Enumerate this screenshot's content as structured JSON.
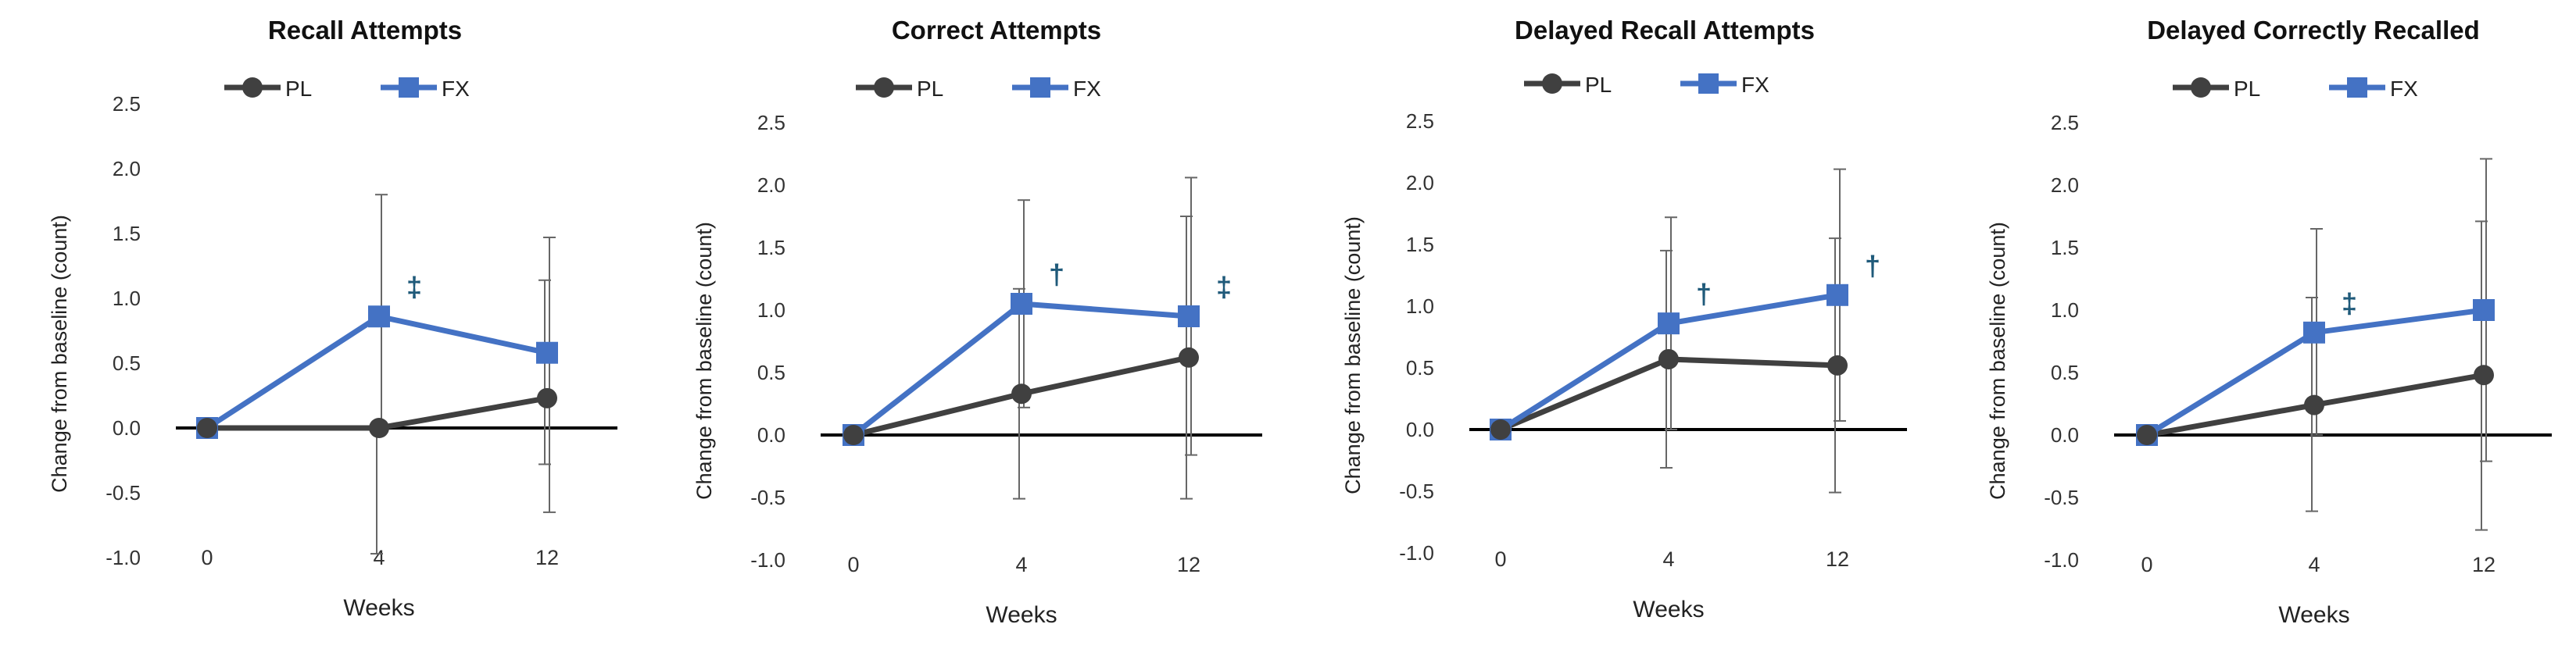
{
  "chart_data": [
    {
      "type": "line",
      "title": "Recall Attempts",
      "xlabel": "Weeks",
      "ylabel": "Change from baseline (count)",
      "categories": [
        "0",
        "4",
        "12"
      ],
      "ylim": [
        -1.0,
        2.5
      ],
      "yticks": [
        "2.5",
        "2.0",
        "1.5",
        "1.0",
        "0.5",
        "0.0",
        "-0.5",
        "-1.0"
      ],
      "legend_position": "top",
      "grid": false,
      "series": [
        {
          "name": "PL",
          "values": [
            0.0,
            0.0,
            0.23
          ],
          "err_low": [
            0,
            -0.97,
            -0.28
          ],
          "err_high": [
            0,
            0.0,
            1.14
          ],
          "marker": "circle",
          "color": "#404040"
        },
        {
          "name": "FX",
          "values": [
            0.0,
            0.86,
            0.58
          ],
          "err_low": [
            0,
            0.0,
            -0.65
          ],
          "err_high": [
            0,
            1.8,
            1.47
          ],
          "marker": "square",
          "color": "#4472C4"
        }
      ],
      "annotations": [
        {
          "text": "‡",
          "x": "4",
          "y": 0.86,
          "color": "#1F5A7A"
        }
      ]
    },
    {
      "type": "line",
      "title": "Correct Attempts",
      "xlabel": "Weeks",
      "ylabel": "Change from baseline (count)",
      "categories": [
        "0",
        "4",
        "12"
      ],
      "ylim": [
        -1.0,
        2.5
      ],
      "yticks": [
        "2.5",
        "2.0",
        "1.5",
        "1.0",
        "0.5",
        "0.0",
        "-0.5",
        "-1.0"
      ],
      "legend_position": "top",
      "grid": false,
      "series": [
        {
          "name": "PL",
          "values": [
            0.0,
            0.33,
            0.62
          ],
          "err_low": [
            0,
            -0.51,
            -0.51
          ],
          "err_high": [
            0,
            1.17,
            1.75
          ],
          "marker": "circle",
          "color": "#404040"
        },
        {
          "name": "FX",
          "values": [
            0.0,
            1.05,
            0.95
          ],
          "err_low": [
            0,
            0.22,
            -0.16
          ],
          "err_high": [
            0,
            1.88,
            2.06
          ],
          "marker": "square",
          "color": "#4472C4"
        }
      ],
      "annotations": [
        {
          "text": "†",
          "x": "4",
          "y": 1.05,
          "color": "#1F5A7A"
        },
        {
          "text": "‡",
          "x": "12",
          "y": 0.95,
          "color": "#1F5A7A"
        }
      ]
    },
    {
      "type": "line",
      "title": "Delayed Recall Attempts",
      "xlabel": "Weeks",
      "ylabel": "Change from baseline (count)",
      "categories": [
        "0",
        "4",
        "12"
      ],
      "ylim": [
        -1.0,
        2.5
      ],
      "yticks": [
        "2.5",
        "2.0",
        "1.5",
        "1.0",
        "0.5",
        "0.0",
        "-0.5",
        "-1.0"
      ],
      "legend_position": "top",
      "grid": false,
      "series": [
        {
          "name": "PL",
          "values": [
            0.0,
            0.57,
            0.52
          ],
          "err_low": [
            0,
            -0.31,
            -0.51
          ],
          "err_high": [
            0,
            1.45,
            1.55
          ],
          "marker": "circle",
          "color": "#404040"
        },
        {
          "name": "FX",
          "values": [
            0.0,
            0.86,
            1.09
          ],
          "err_low": [
            0,
            0.0,
            0.07
          ],
          "err_high": [
            0,
            1.72,
            2.11
          ],
          "marker": "square",
          "color": "#4472C4"
        }
      ],
      "annotations": [
        {
          "text": "†",
          "x": "4",
          "y": 0.86,
          "color": "#1F5A7A"
        },
        {
          "text": "†",
          "x": "12",
          "y": 1.09,
          "color": "#1F5A7A"
        }
      ]
    },
    {
      "type": "line",
      "title": "Delayed Correctly Recalled",
      "xlabel": "Weeks",
      "ylabel": "Change from baseline (count)",
      "categories": [
        "0",
        "4",
        "12"
      ],
      "ylim": [
        -1.0,
        2.5
      ],
      "yticks": [
        "2.5",
        "2.0",
        "1.5",
        "1.0",
        "0.5",
        "0.0",
        "-0.5",
        "-1.0"
      ],
      "legend_position": "top",
      "grid": false,
      "series": [
        {
          "name": "PL",
          "values": [
            0.0,
            0.24,
            0.48
          ],
          "err_low": [
            0,
            -0.61,
            -0.76
          ],
          "err_high": [
            0,
            1.1,
            1.71
          ],
          "marker": "circle",
          "color": "#404040"
        },
        {
          "name": "FX",
          "values": [
            0.0,
            0.82,
            1.0
          ],
          "err_low": [
            0,
            0.0,
            -0.21
          ],
          "err_high": [
            0,
            1.65,
            2.21
          ],
          "marker": "square",
          "color": "#4472C4"
        }
      ],
      "annotations": [
        {
          "text": "‡",
          "x": "4",
          "y": 0.82,
          "color": "#1F5A7A"
        }
      ]
    }
  ]
}
